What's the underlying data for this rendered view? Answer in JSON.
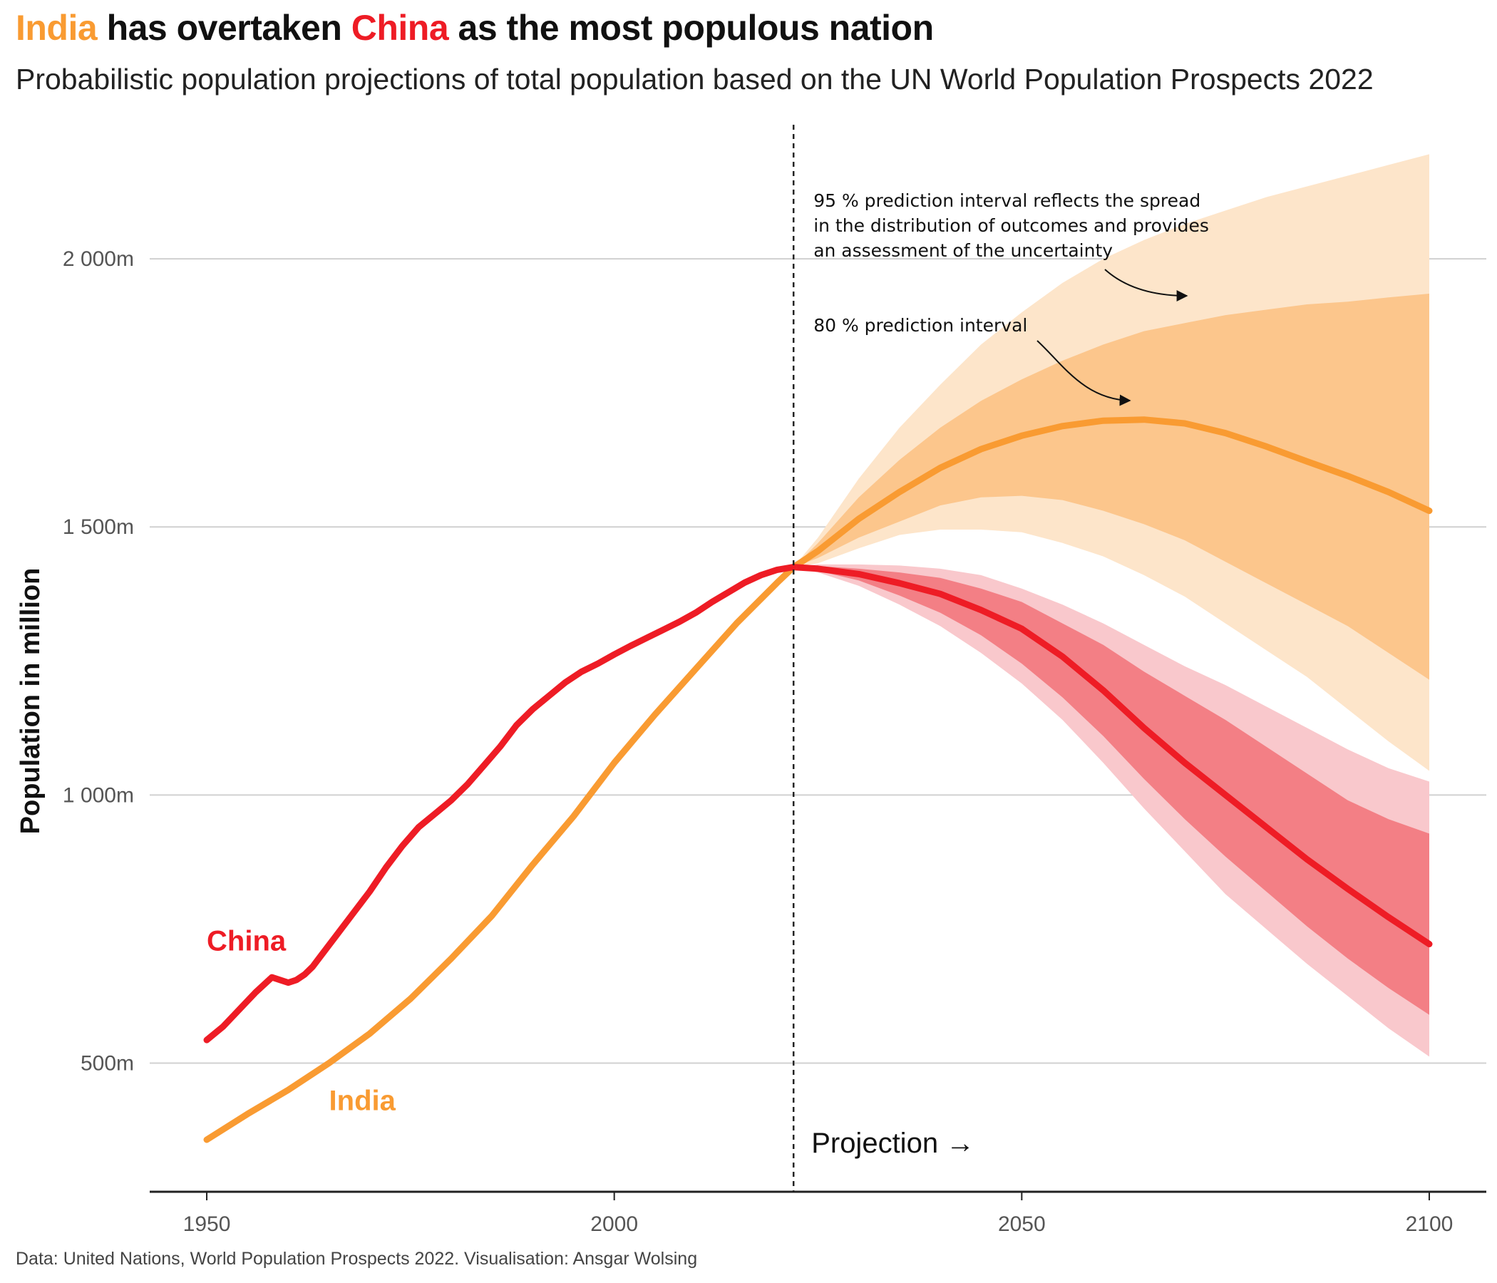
{
  "title": {
    "india": "India",
    "mid1": " has overtaken ",
    "china": "China",
    "mid2": " as the most populous nation"
  },
  "subtitle": "Probabilistic population projections of total population based on the UN World Population Prospects 2022",
  "caption": "Data: United Nations, World Population Prospects 2022. Visualisation: Ansgar Wolsing",
  "colors": {
    "india": "#F99B32",
    "china": "#EE1C25",
    "india_pi95": "#FDE5CA",
    "india_pi80": "#FCC68C",
    "china_pi95": "#F9C8CC",
    "china_pi80": "#F37F85",
    "grid": "#D0D0D0",
    "text": "#111111"
  },
  "chart_data": {
    "type": "line",
    "xlim": [
      1943,
      2107
    ],
    "ylim": [
      260,
      2250
    ],
    "x_ticks": [
      1950,
      2000,
      2050,
      2100
    ],
    "x_tick_labels": [
      "1950",
      "2000",
      "2050",
      "2100"
    ],
    "y_ticks": [
      500,
      1000,
      1500,
      2000
    ],
    "y_tick_labels": [
      "500m",
      "1 000m",
      "1 500m",
      "2 000m"
    ],
    "ylabel": "Population in million",
    "xlabel": "",
    "grid": "horizontal",
    "projection_start": 2022,
    "projection_label": "Projection →",
    "series": [
      {
        "name": "China",
        "label": "China",
        "x": [
          1950,
          1952,
          1954,
          1956,
          1958,
          1959,
          1960,
          1961,
          1962,
          1963,
          1964,
          1966,
          1968,
          1970,
          1972,
          1974,
          1976,
          1978,
          1980,
          1982,
          1984,
          1986,
          1988,
          1990,
          1992,
          1994,
          1996,
          1998,
          2000,
          2002,
          2004,
          2006,
          2008,
          2010,
          2012,
          2014,
          2016,
          2018,
          2020,
          2022
        ],
        "values": [
          543,
          568,
          600,
          632,
          660,
          655,
          650,
          655,
          665,
          680,
          700,
          740,
          780,
          820,
          865,
          905,
          940,
          965,
          990,
          1020,
          1055,
          1090,
          1130,
          1160,
          1185,
          1210,
          1230,
          1245,
          1262,
          1278,
          1293,
          1308,
          1323,
          1340,
          1360,
          1378,
          1396,
          1410,
          1420,
          1425
        ]
      },
      {
        "name": "India",
        "label": "India",
        "x": [
          1950,
          1955,
          1960,
          1965,
          1970,
          1975,
          1980,
          1985,
          1990,
          1995,
          2000,
          2005,
          2010,
          2015,
          2020,
          2022
        ],
        "values": [
          357,
          405,
          450,
          500,
          555,
          620,
          695,
          775,
          870,
          960,
          1060,
          1150,
          1235,
          1320,
          1396,
          1425
        ]
      }
    ],
    "projections": [
      {
        "name": "India",
        "x": [
          2022,
          2025,
          2030,
          2035,
          2040,
          2045,
          2050,
          2055,
          2060,
          2065,
          2070,
          2075,
          2080,
          2085,
          2090,
          2095,
          2100
        ],
        "median": [
          1425,
          1455,
          1515,
          1565,
          1610,
          1645,
          1670,
          1688,
          1698,
          1700,
          1693,
          1675,
          1650,
          1622,
          1595,
          1565,
          1530
        ],
        "lower80": [
          1425,
          1442,
          1480,
          1510,
          1540,
          1555,
          1558,
          1550,
          1530,
          1505,
          1475,
          1435,
          1395,
          1355,
          1315,
          1265,
          1215
        ],
        "upper80": [
          1425,
          1470,
          1555,
          1625,
          1685,
          1735,
          1775,
          1810,
          1840,
          1865,
          1880,
          1895,
          1905,
          1915,
          1920,
          1928,
          1935
        ],
        "lower95": [
          1425,
          1432,
          1460,
          1485,
          1495,
          1495,
          1490,
          1470,
          1445,
          1410,
          1370,
          1320,
          1270,
          1220,
          1160,
          1100,
          1045
        ],
        "upper95": [
          1425,
          1480,
          1590,
          1685,
          1765,
          1840,
          1900,
          1955,
          2000,
          2035,
          2065,
          2090,
          2115,
          2135,
          2155,
          2175,
          2195
        ]
      },
      {
        "name": "China",
        "x": [
          2022,
          2025,
          2030,
          2035,
          2040,
          2045,
          2050,
          2055,
          2060,
          2065,
          2070,
          2075,
          2080,
          2085,
          2090,
          2095,
          2100
        ],
        "median": [
          1425,
          1422,
          1412,
          1395,
          1375,
          1345,
          1310,
          1258,
          1195,
          1125,
          1060,
          1000,
          940,
          880,
          825,
          772,
          722
        ],
        "lower80": [
          1425,
          1418,
          1400,
          1372,
          1340,
          1298,
          1245,
          1182,
          1110,
          1030,
          955,
          885,
          820,
          755,
          695,
          640,
          590
        ],
        "upper80": [
          1425,
          1427,
          1422,
          1415,
          1405,
          1385,
          1360,
          1320,
          1280,
          1230,
          1185,
          1140,
          1090,
          1040,
          990,
          955,
          928
        ],
        "lower95": [
          1425,
          1415,
          1390,
          1355,
          1315,
          1265,
          1208,
          1140,
          1060,
          975,
          895,
          815,
          750,
          685,
          625,
          565,
          512
        ],
        "upper95": [
          1425,
          1430,
          1430,
          1428,
          1422,
          1410,
          1385,
          1355,
          1320,
          1280,
          1240,
          1205,
          1165,
          1125,
          1085,
          1050,
          1025
        ]
      }
    ],
    "annotations": [
      {
        "name": "pi95",
        "lines": [
          "95 % prediction interval reflects the spread",
          "in the distribution of outcomes and provides",
          "an assessment of the uncertainty"
        ]
      },
      {
        "name": "pi80",
        "lines": [
          "80 % prediction interval"
        ]
      }
    ]
  }
}
